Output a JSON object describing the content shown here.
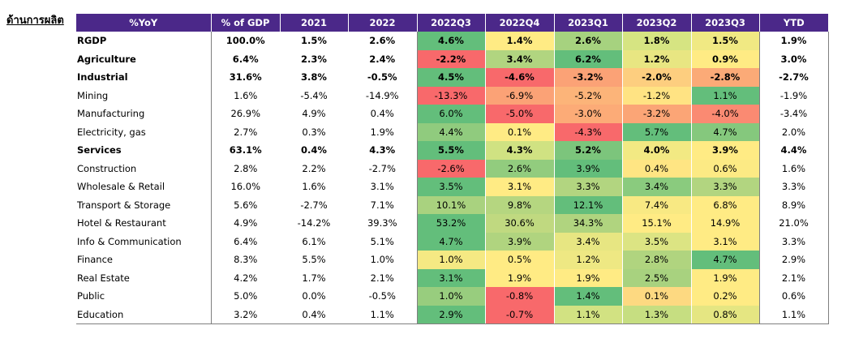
{
  "section_title": "ด้านการผลิต",
  "columns": [
    "%YoY",
    "% of GDP",
    "2021",
    "2022",
    "2022Q3",
    "2022Q4",
    "2023Q1",
    "2023Q2",
    "2023Q3",
    "YTD"
  ],
  "rows": [
    {
      "label": "RGDP",
      "bold": true,
      "values": [
        "100.0%",
        "1.5%",
        "2.6%",
        "4.6%",
        "1.4%",
        "2.6%",
        "1.8%",
        "1.5%",
        "1.9%"
      ],
      "colors": [
        "#63be7b",
        "#ffeb84",
        "#a6d27f",
        "#d6e482",
        "#f0e983"
      ]
    },
    {
      "label": "Agriculture",
      "bold": true,
      "values": [
        "6.4%",
        "2.3%",
        "2.4%",
        "-2.2%",
        "3.4%",
        "6.2%",
        "1.2%",
        "0.9%",
        "3.0%"
      ],
      "colors": [
        "#f8696b",
        "#b1d580",
        "#63be7b",
        "#e8e682",
        "#ffeb84"
      ]
    },
    {
      "label": "Industrial",
      "bold": true,
      "values": [
        "31.6%",
        "3.8%",
        "-0.5%",
        "4.5%",
        "-4.6%",
        "-3.2%",
        "-2.0%",
        "-2.8%",
        "-2.7%"
      ],
      "colors": [
        "#63be7b",
        "#f8696b",
        "#fba276",
        "#fdce7f",
        "#fbaa77"
      ]
    },
    {
      "label": "Mining",
      "bold": false,
      "values": [
        "1.6%",
        "-5.4%",
        "-14.9%",
        "-13.3%",
        "-6.9%",
        "-5.2%",
        "-1.2%",
        "1.1%",
        "-1.9%"
      ],
      "colors": [
        "#f8696b",
        "#fba276",
        "#fcb479",
        "#ffe383",
        "#63be7b"
      ]
    },
    {
      "label": "Manufacturing",
      "bold": false,
      "values": [
        "26.9%",
        "4.9%",
        "0.4%",
        "6.0%",
        "-5.0%",
        "-3.0%",
        "-3.2%",
        "-4.0%",
        "-3.4%"
      ],
      "colors": [
        "#63be7b",
        "#f8696b",
        "#fcab77",
        "#fba576",
        "#fa8a72"
      ]
    },
    {
      "label": "Electricity, gas",
      "bold": false,
      "values": [
        "2.7%",
        "0.3%",
        "1.9%",
        "4.4%",
        "0.1%",
        "-4.3%",
        "5.7%",
        "4.7%",
        "2.0%"
      ],
      "colors": [
        "#90cb7e",
        "#ffeb84",
        "#f8696b",
        "#63be7b",
        "#85c87d"
      ]
    },
    {
      "label": "Services",
      "bold": true,
      "values": [
        "63.1%",
        "0.4%",
        "4.3%",
        "5.5%",
        "4.3%",
        "5.2%",
        "4.0%",
        "3.9%",
        "4.4%"
      ],
      "colors": [
        "#63be7b",
        "#d0e282",
        "#7cc57c",
        "#f2e983",
        "#ffeb84"
      ]
    },
    {
      "label": "Construction",
      "bold": false,
      "values": [
        "2.8%",
        "2.2%",
        "-2.7%",
        "-2.6%",
        "2.6%",
        "3.9%",
        "0.4%",
        "0.6%",
        "1.6%"
      ],
      "colors": [
        "#f8696b",
        "#92cc7e",
        "#63be7b",
        "#ffe583",
        "#fcea84"
      ]
    },
    {
      "label": "Wholesale & Retail",
      "bold": false,
      "values": [
        "16.0%",
        "1.6%",
        "3.1%",
        "3.5%",
        "3.1%",
        "3.3%",
        "3.4%",
        "3.3%",
        "3.3%"
      ],
      "colors": [
        "#63be7b",
        "#ffeb84",
        "#b2d580",
        "#8acb7e",
        "#b2d580"
      ]
    },
    {
      "label": "Transport & Storage",
      "bold": false,
      "values": [
        "5.6%",
        "-2.7%",
        "7.1%",
        "10.1%",
        "9.8%",
        "12.1%",
        "7.4%",
        "6.8%",
        "8.9%"
      ],
      "colors": [
        "#a9d27f",
        "#b5d680",
        "#63be7b",
        "#f8e983",
        "#ffeb84"
      ]
    },
    {
      "label": "Hotel & Restaurant",
      "bold": false,
      "values": [
        "4.9%",
        "-14.2%",
        "39.3%",
        "53.2%",
        "30.6%",
        "34.3%",
        "15.1%",
        "14.9%",
        "21.0%"
      ],
      "colors": [
        "#63be7b",
        "#c0d980",
        "#b0d47f",
        "#ffeb84",
        "#ffeb84"
      ]
    },
    {
      "label": "Info & Communication",
      "bold": false,
      "values": [
        "6.4%",
        "6.1%",
        "5.1%",
        "4.7%",
        "3.9%",
        "3.4%",
        "3.5%",
        "3.1%",
        "3.3%"
      ],
      "colors": [
        "#63be7b",
        "#b0d47f",
        "#e7e682",
        "#dce483",
        "#ffeb84"
      ]
    },
    {
      "label": "Finance",
      "bold": false,
      "values": [
        "8.3%",
        "5.5%",
        "1.0%",
        "1.0%",
        "0.5%",
        "1.2%",
        "2.8%",
        "4.7%",
        "2.9%"
      ],
      "colors": [
        "#f5e983",
        "#ffeb84",
        "#eee883",
        "#b0d47f",
        "#63be7b"
      ]
    },
    {
      "label": "Real Estate",
      "bold": false,
      "values": [
        "4.2%",
        "1.7%",
        "2.1%",
        "3.1%",
        "1.9%",
        "1.9%",
        "2.5%",
        "1.9%",
        "2.1%"
      ],
      "colors": [
        "#63be7b",
        "#ffeb84",
        "#ffeb84",
        "#a8d27f",
        "#ffeb84"
      ]
    },
    {
      "label": "Public",
      "bold": false,
      "values": [
        "5.0%",
        "0.0%",
        "-0.5%",
        "1.0%",
        "-0.8%",
        "1.4%",
        "0.1%",
        "0.2%",
        "0.6%"
      ],
      "colors": [
        "#98cd7e",
        "#f8696b",
        "#63be7b",
        "#fdd981",
        "#ffeb84"
      ]
    },
    {
      "label": "Education",
      "bold": false,
      "values": [
        "3.2%",
        "0.4%",
        "1.1%",
        "2.9%",
        "-0.7%",
        "1.1%",
        "1.3%",
        "0.8%",
        "1.1%"
      ],
      "colors": [
        "#63be7b",
        "#f8696b",
        "#d2e282",
        "#c6de81",
        "#e5e682"
      ]
    }
  ]
}
